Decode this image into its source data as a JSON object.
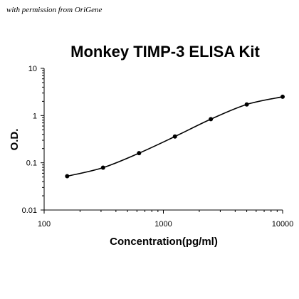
{
  "credit_text": "with permission from OriGene",
  "chart_data": {
    "type": "scatter",
    "title": "Monkey TIMP-3 ELISA Kit",
    "xlabel": "Concentration(pg/ml)",
    "ylabel": "O.D.",
    "x_scale": "log",
    "y_scale": "log",
    "xlim": [
      100,
      10000
    ],
    "ylim": [
      0.01,
      10
    ],
    "x_ticks": [
      100,
      1000,
      10000
    ],
    "x_tick_labels": [
      "100",
      "1000",
      "10000"
    ],
    "y_ticks": [
      0.01,
      0.1,
      1,
      10
    ],
    "y_tick_labels": [
      "0.01",
      "0.1",
      "1",
      "10"
    ],
    "grid": false,
    "legend": "none",
    "fit_curve": true,
    "colors": {
      "marker": "#000000",
      "curve": "#000000",
      "axis": "#000000"
    },
    "x": [
      156,
      312,
      625,
      1250,
      2500,
      5000,
      10000
    ],
    "y": [
      0.052,
      0.079,
      0.16,
      0.36,
      0.84,
      1.72,
      2.5
    ]
  }
}
